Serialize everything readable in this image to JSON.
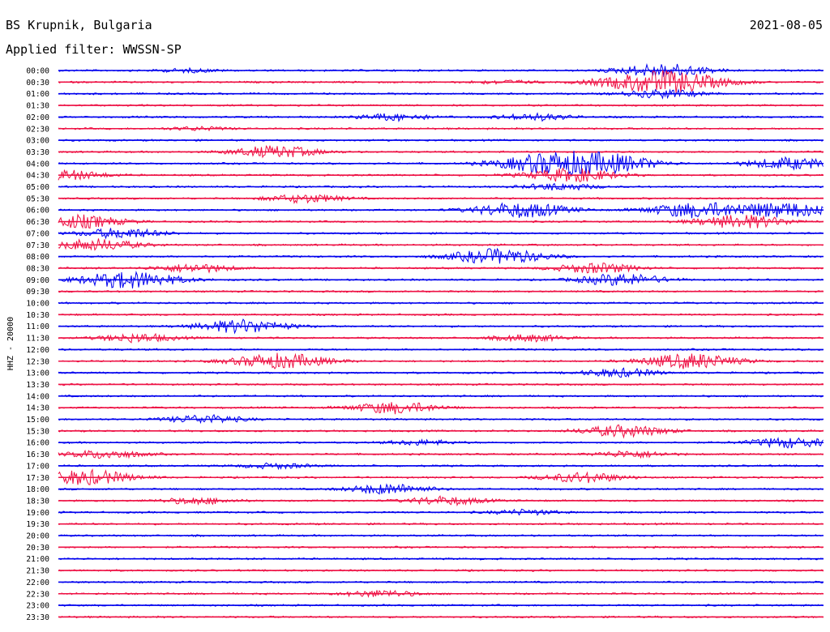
{
  "header": {
    "station": "BS Krupnik, Bulgaria",
    "date": "2021-08-05",
    "filter": "Applied filter: WWSSN-SP"
  },
  "chart_data": {
    "type": "line",
    "title": "BS Krupnik, Bulgaria",
    "ylabel": "HHZ - 20000",
    "colors": [
      "#0000ee",
      "#ee1144"
    ],
    "grid": false,
    "legend": "none",
    "traces": [
      {
        "label": "00:00",
        "bursts": [
          {
            "x": 232,
            "a": 2
          },
          {
            "x": 818,
            "a": 8
          }
        ]
      },
      {
        "label": "00:30",
        "bursts": [
          {
            "x": 818,
            "a": 14
          },
          {
            "x": 620,
            "a": 2
          }
        ]
      },
      {
        "label": "01:00",
        "bursts": [
          {
            "x": 818,
            "a": 5
          }
        ]
      },
      {
        "label": "01:30",
        "bursts": []
      },
      {
        "label": "02:00",
        "bursts": [
          {
            "x": 487,
            "a": 4
          },
          {
            "x": 660,
            "a": 4
          }
        ]
      },
      {
        "label": "02:30",
        "bursts": [
          {
            "x": 245,
            "a": 2
          }
        ]
      },
      {
        "label": "03:00",
        "bursts": []
      },
      {
        "label": "03:30",
        "bursts": [
          {
            "x": 340,
            "a": 7
          }
        ]
      },
      {
        "label": "04:00",
        "bursts": [
          {
            "x": 693,
            "a": 14
          },
          {
            "x": 770,
            "a": 6
          },
          {
            "x": 975,
            "a": 7
          }
        ]
      },
      {
        "label": "04:30",
        "bursts": [
          {
            "x": 78,
            "a": 6
          },
          {
            "x": 705,
            "a": 8
          }
        ]
      },
      {
        "label": "05:00",
        "bursts": [
          {
            "x": 690,
            "a": 4
          }
        ]
      },
      {
        "label": "05:30",
        "bursts": [
          {
            "x": 376,
            "a": 5
          }
        ]
      },
      {
        "label": "06:00",
        "bursts": [
          {
            "x": 643,
            "a": 9
          },
          {
            "x": 858,
            "a": 9
          },
          {
            "x": 968,
            "a": 9
          }
        ]
      },
      {
        "label": "06:30",
        "bursts": [
          {
            "x": 95,
            "a": 8
          },
          {
            "x": 915,
            "a": 8
          }
        ]
      },
      {
        "label": "07:00",
        "bursts": [
          {
            "x": 150,
            "a": 6
          }
        ]
      },
      {
        "label": "07:30",
        "bursts": [
          {
            "x": 118,
            "a": 7
          }
        ]
      },
      {
        "label": "08:00",
        "bursts": [
          {
            "x": 614,
            "a": 9
          }
        ]
      },
      {
        "label": "08:30",
        "bursts": [
          {
            "x": 240,
            "a": 5
          },
          {
            "x": 735,
            "a": 6
          }
        ]
      },
      {
        "label": "09:00",
        "bursts": [
          {
            "x": 160,
            "a": 10
          },
          {
            "x": 767,
            "a": 7
          }
        ]
      },
      {
        "label": "09:30",
        "bursts": []
      },
      {
        "label": "10:00",
        "bursts": []
      },
      {
        "label": "10:30",
        "bursts": []
      },
      {
        "label": "11:00",
        "bursts": [
          {
            "x": 300,
            "a": 8
          }
        ]
      },
      {
        "label": "11:30",
        "bursts": [
          {
            "x": 170,
            "a": 5
          },
          {
            "x": 652,
            "a": 4
          }
        ]
      },
      {
        "label": "12:00",
        "bursts": []
      },
      {
        "label": "12:30",
        "bursts": [
          {
            "x": 346,
            "a": 9
          },
          {
            "x": 852,
            "a": 9
          }
        ]
      },
      {
        "label": "13:00",
        "bursts": [
          {
            "x": 765,
            "a": 5
          }
        ]
      },
      {
        "label": "13:30",
        "bursts": []
      },
      {
        "label": "14:00",
        "bursts": []
      },
      {
        "label": "14:30",
        "bursts": [
          {
            "x": 487,
            "a": 7
          }
        ]
      },
      {
        "label": "15:00",
        "bursts": [
          {
            "x": 252,
            "a": 5
          }
        ]
      },
      {
        "label": "15:30",
        "bursts": [
          {
            "x": 770,
            "a": 7
          }
        ]
      },
      {
        "label": "16:00",
        "bursts": [
          {
            "x": 520,
            "a": 3
          },
          {
            "x": 975,
            "a": 6
          }
        ]
      },
      {
        "label": "16:30",
        "bursts": [
          {
            "x": 130,
            "a": 5
          },
          {
            "x": 780,
            "a": 4
          }
        ]
      },
      {
        "label": "17:00",
        "bursts": [
          {
            "x": 340,
            "a": 3
          }
        ]
      },
      {
        "label": "17:30",
        "bursts": [
          {
            "x": 105,
            "a": 9
          },
          {
            "x": 720,
            "a": 6
          }
        ]
      },
      {
        "label": "18:00",
        "bursts": [
          {
            "x": 480,
            "a": 6
          }
        ]
      },
      {
        "label": "18:30",
        "bursts": [
          {
            "x": 243,
            "a": 4
          },
          {
            "x": 550,
            "a": 5
          }
        ]
      },
      {
        "label": "19:00",
        "bursts": [
          {
            "x": 648,
            "a": 3
          }
        ]
      },
      {
        "label": "19:30",
        "bursts": []
      },
      {
        "label": "20:00",
        "bursts": []
      },
      {
        "label": "20:30",
        "bursts": []
      },
      {
        "label": "21:00",
        "bursts": []
      },
      {
        "label": "21:30",
        "bursts": []
      },
      {
        "label": "22:00",
        "bursts": []
      },
      {
        "label": "22:30",
        "bursts": [
          {
            "x": 470,
            "a": 4
          }
        ]
      },
      {
        "label": "23:00",
        "bursts": []
      },
      {
        "label": "23:30",
        "bursts": []
      }
    ]
  }
}
